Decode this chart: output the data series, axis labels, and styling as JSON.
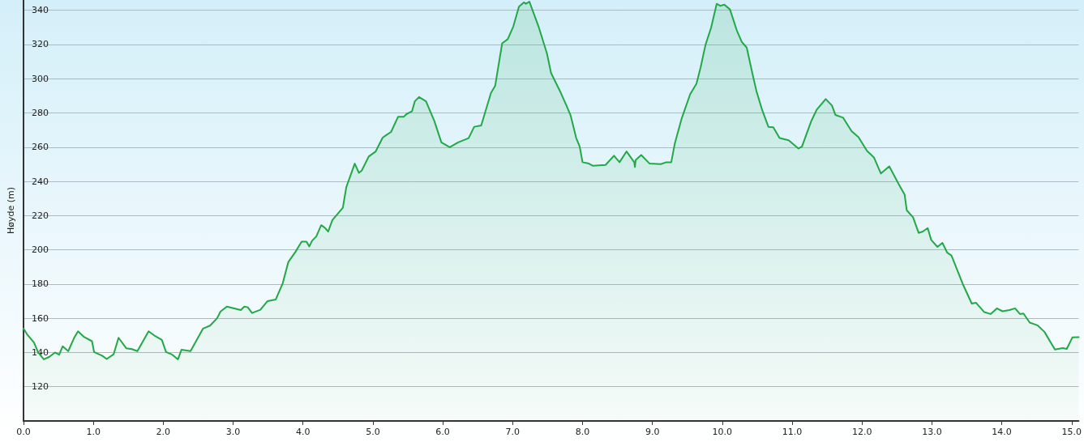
{
  "chart_data": {
    "type": "area",
    "ylabel": "Høyde (m)",
    "xlim": [
      0,
      15.1
    ],
    "ylim": [
      100,
      346
    ],
    "xticks": [
      {
        "value": 0,
        "label": "0.0"
      },
      {
        "value": 1,
        "label": "1.0"
      },
      {
        "value": 2,
        "label": "2.0"
      },
      {
        "value": 3,
        "label": "3.0"
      },
      {
        "value": 4,
        "label": "4.0"
      },
      {
        "value": 5,
        "label": "5.0"
      },
      {
        "value": 6,
        "label": "6.0"
      },
      {
        "value": 7,
        "label": "7.0"
      },
      {
        "value": 8,
        "label": "8.0"
      },
      {
        "value": 9,
        "label": "9.0"
      },
      {
        "value": 10,
        "label": "10.0"
      },
      {
        "value": 11,
        "label": "11.0"
      },
      {
        "value": 12,
        "label": "12.0"
      },
      {
        "value": 13,
        "label": "13.0"
      },
      {
        "value": 14,
        "label": "14.0"
      },
      {
        "value": 15,
        "label": "15.0"
      }
    ],
    "yticks": [
      120,
      140,
      160,
      180,
      200,
      220,
      240,
      260,
      280,
      300,
      320,
      340
    ],
    "grid": "y",
    "marker": "none",
    "line_style": "solid",
    "series": [
      {
        "color": "#22a846",
        "x": [
          0,
          0.05,
          0.15,
          0.21,
          0.29,
          0.37,
          0.45,
          0.51,
          0.56,
          0.64,
          0.73,
          0.78,
          0.87,
          0.98,
          1.01,
          1.13,
          1.19,
          1.29,
          1.36,
          1.47,
          1.55,
          1.63,
          1.79,
          1.87,
          1.98,
          2.04,
          2.13,
          2.21,
          2.26,
          2.39,
          2.57,
          2.67,
          2.77,
          2.82,
          2.91,
          3.11,
          3.16,
          3.21,
          3.27,
          3.39,
          3.49,
          3.61,
          3.71,
          3.79,
          3.89,
          3.98,
          4.05,
          4.09,
          4.13,
          4.19,
          4.26,
          4.31,
          4.36,
          4.42,
          4.57,
          4.62,
          4.74,
          4.8,
          4.84,
          4.94,
          5.04,
          5.14,
          5.2,
          5.26,
          5.36,
          5.44,
          5.48,
          5.56,
          5.6,
          5.66,
          5.76,
          5.88,
          5.98,
          6.1,
          6.22,
          6.37,
          6.45,
          6.55,
          6.69,
          6.75,
          6.85,
          6.93,
          7.01,
          7.09,
          7.16,
          7.19,
          7.24,
          7.37,
          7.49,
          7.55,
          7.69,
          7.77,
          7.83,
          7.91,
          7.96,
          8,
          8.09,
          8.15,
          8.33,
          8.45,
          8.53,
          8.63,
          8.74,
          8.75,
          8.76,
          8.84,
          8.96,
          9.12,
          9.2,
          9.27,
          9.32,
          9.42,
          9.54,
          9.63,
          9.69,
          9.76,
          9.84,
          9.92,
          9.97,
          10.03,
          10.11,
          10.21,
          10.28,
          10.35,
          10.43,
          10.49,
          10.57,
          10.66,
          10.73,
          10.82,
          10.95,
          11.09,
          11.14,
          11.27,
          11.35,
          11.48,
          11.57,
          11.62,
          11.73,
          11.85,
          11.95,
          12.07,
          12.17,
          12.27,
          12.39,
          12.53,
          12.61,
          12.64,
          12.73,
          12.81,
          12.87,
          12.94,
          12.99,
          13.08,
          13.15,
          13.22,
          13.28,
          13.44,
          13.57,
          13.63,
          13.75,
          13.84,
          13.93,
          14.01,
          14.11,
          14.19,
          14.26,
          14.31,
          14.4,
          14.51,
          14.61,
          14.76,
          14.87,
          14.93,
          15.01,
          15.1
        ],
        "values": [
          154,
          150.7,
          145.8,
          140,
          136,
          137.5,
          140,
          138.7,
          143.6,
          140.8,
          149,
          152.4,
          149,
          146.6,
          140.3,
          138,
          136.2,
          139,
          148.6,
          142.5,
          142,
          140.8,
          152.4,
          150,
          147.4,
          140.3,
          138.7,
          136,
          141.6,
          140.8,
          154,
          155.7,
          160,
          164,
          166.8,
          164.8,
          166.8,
          166.4,
          163.1,
          165,
          170,
          171,
          180.5,
          192.9,
          198.7,
          204.8,
          204.8,
          202,
          205.3,
          207.8,
          214.4,
          213,
          210.7,
          217.4,
          224.6,
          236.7,
          250.4,
          245,
          246.3,
          254.5,
          257.5,
          265.6,
          267.3,
          268.9,
          277.7,
          277.7,
          279.3,
          281,
          286.8,
          289.3,
          286.8,
          275.2,
          262.8,
          260,
          262.8,
          265.3,
          271.9,
          272.7,
          291.7,
          295.9,
          320.7,
          323.1,
          330.6,
          342.1,
          344.6,
          343.8,
          345,
          330.6,
          314.9,
          303.3,
          291.7,
          284.3,
          278.5,
          265.3,
          260.3,
          251.2,
          250.4,
          249.1,
          249.6,
          255,
          251.2,
          257.5,
          251.2,
          248.4,
          252.4,
          255.4,
          250.4,
          250.1,
          251.2,
          251.2,
          262,
          276.9,
          290.9,
          297,
          306.6,
          319.8,
          329.8,
          343.8,
          342.6,
          343.3,
          340.5,
          328,
          321.5,
          318.2,
          303.3,
          292.6,
          281.8,
          271.9,
          271.6,
          265.3,
          264,
          259.2,
          260.3,
          274.9,
          281.8,
          288.1,
          284.3,
          278.8,
          277.2,
          269.4,
          265.8,
          257.9,
          254,
          244.6,
          248.8,
          238,
          232.2,
          223.1,
          219,
          209.9,
          210.7,
          212.7,
          205.8,
          201.7,
          204.1,
          198.3,
          196.7,
          180.2,
          168.6,
          169.1,
          163.6,
          162.5,
          165.8,
          164.1,
          164.8,
          165.8,
          162.5,
          162.8,
          157.5,
          155.9,
          152.1,
          141.7,
          142.6,
          142.1,
          148.8,
          149
        ]
      }
    ]
  }
}
